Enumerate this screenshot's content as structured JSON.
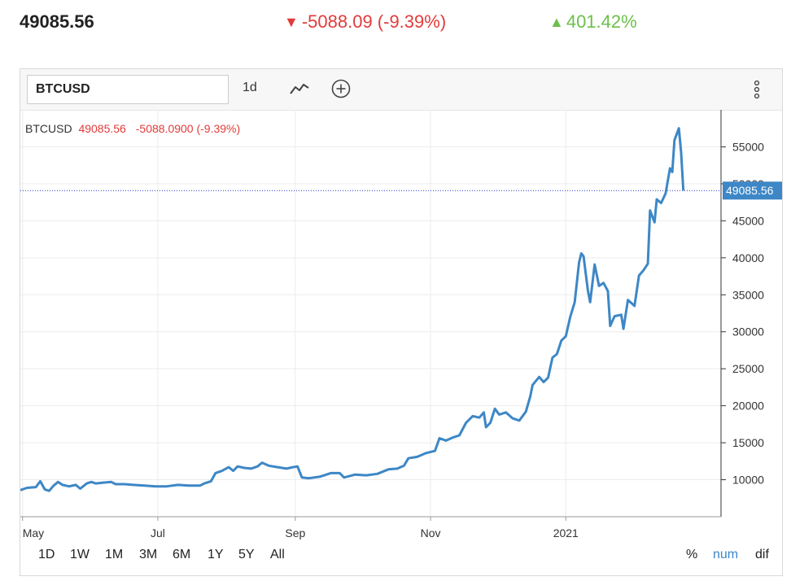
{
  "header": {
    "price": "49085.56",
    "change": "-5088.09 (-9.39%)",
    "change_icon": "triangle-down-icon",
    "change_color": "#e23b3b",
    "performance": "401.42%",
    "performance_icon": "triangle-up-icon",
    "performance_color": "#6cc04a"
  },
  "toolbar": {
    "symbol_value": "BTCUSD",
    "interval_label": "1d",
    "chart_type_icon": "line-chart-icon",
    "indicator_icon": "add-indicator-icon",
    "menu_icon": "more-vertical-icon"
  },
  "legend": {
    "symbol": "BTCUSD",
    "price": "49085.56",
    "change": "-5088.0900 (-9.39%)"
  },
  "price_label": "49085.56",
  "ranges": [
    "1D",
    "1W",
    "1M",
    "3M",
    "6M",
    "1Y",
    "5Y",
    "All"
  ],
  "modes": [
    "%",
    "num",
    "dif"
  ],
  "active_mode": "num",
  "colors": {
    "line": "#3d87c6",
    "price_tag": "#3d87c6",
    "down": "#e23b3b",
    "up": "#6cc04a",
    "grid": "#ececec",
    "ref_line": "#2233cc"
  },
  "chart_data": {
    "type": "line",
    "title": "",
    "xlabel": "",
    "ylabel": "",
    "ylim": [
      5000,
      60000
    ],
    "yticks": [
      10000,
      15000,
      20000,
      25000,
      30000,
      35000,
      40000,
      45000,
      50000,
      55000
    ],
    "xlim": [
      "2020-04-30",
      "2021-03-12"
    ],
    "xticks": [
      {
        "date": "2020-05-01",
        "label": "May"
      },
      {
        "date": "2020-07-01",
        "label": "Jul"
      },
      {
        "date": "2020-09-01",
        "label": "Sep"
      },
      {
        "date": "2020-11-01",
        "label": "Nov"
      },
      {
        "date": "2021-01-01",
        "label": "2021"
      }
    ],
    "grid": true,
    "last_value": 49085.56,
    "series": [
      {
        "name": "BTCUSD",
        "points": [
          [
            "2020-04-30",
            8600
          ],
          [
            "2020-05-03",
            8900
          ],
          [
            "2020-05-07",
            9000
          ],
          [
            "2020-05-09",
            9800
          ],
          [
            "2020-05-11",
            8700
          ],
          [
            "2020-05-13",
            8500
          ],
          [
            "2020-05-15",
            9200
          ],
          [
            "2020-05-17",
            9700
          ],
          [
            "2020-05-19",
            9300
          ],
          [
            "2020-05-22",
            9100
          ],
          [
            "2020-05-25",
            9300
          ],
          [
            "2020-05-27",
            8800
          ],
          [
            "2020-05-30",
            9500
          ],
          [
            "2020-06-01",
            9700
          ],
          [
            "2020-06-03",
            9500
          ],
          [
            "2020-06-06",
            9600
          ],
          [
            "2020-06-10",
            9700
          ],
          [
            "2020-06-12",
            9400
          ],
          [
            "2020-06-16",
            9400
          ],
          [
            "2020-06-20",
            9300
          ],
          [
            "2020-06-25",
            9200
          ],
          [
            "2020-06-30",
            9100
          ],
          [
            "2020-07-05",
            9100
          ],
          [
            "2020-07-10",
            9300
          ],
          [
            "2020-07-15",
            9200
          ],
          [
            "2020-07-20",
            9200
          ],
          [
            "2020-07-22",
            9500
          ],
          [
            "2020-07-25",
            9800
          ],
          [
            "2020-07-27",
            10900
          ],
          [
            "2020-07-30",
            11200
          ],
          [
            "2020-08-02",
            11700
          ],
          [
            "2020-08-04",
            11200
          ],
          [
            "2020-08-06",
            11800
          ],
          [
            "2020-08-09",
            11600
          ],
          [
            "2020-08-12",
            11500
          ],
          [
            "2020-08-15",
            11800
          ],
          [
            "2020-08-17",
            12300
          ],
          [
            "2020-08-20",
            11900
          ],
          [
            "2020-08-24",
            11700
          ],
          [
            "2020-08-28",
            11500
          ],
          [
            "2020-08-31",
            11700
          ],
          [
            "2020-09-02",
            11800
          ],
          [
            "2020-09-04",
            10300
          ],
          [
            "2020-09-07",
            10200
          ],
          [
            "2020-09-12",
            10400
          ],
          [
            "2020-09-17",
            10900
          ],
          [
            "2020-09-21",
            10900
          ],
          [
            "2020-09-23",
            10300
          ],
          [
            "2020-09-28",
            10700
          ],
          [
            "2020-10-03",
            10600
          ],
          [
            "2020-10-08",
            10800
          ],
          [
            "2020-10-13",
            11400
          ],
          [
            "2020-10-17",
            11500
          ],
          [
            "2020-10-20",
            11900
          ],
          [
            "2020-10-22",
            12900
          ],
          [
            "2020-10-26",
            13100
          ],
          [
            "2020-10-30",
            13600
          ],
          [
            "2020-11-03",
            13900
          ],
          [
            "2020-11-05",
            15600
          ],
          [
            "2020-11-08",
            15300
          ],
          [
            "2020-11-11",
            15700
          ],
          [
            "2020-11-14",
            16000
          ],
          [
            "2020-11-17",
            17700
          ],
          [
            "2020-11-20",
            18600
          ],
          [
            "2020-11-23",
            18400
          ],
          [
            "2020-11-25",
            19100
          ],
          [
            "2020-11-26",
            17100
          ],
          [
            "2020-11-28",
            17700
          ],
          [
            "2020-11-30",
            19600
          ],
          [
            "2020-12-02",
            18800
          ],
          [
            "2020-12-05",
            19100
          ],
          [
            "2020-12-08",
            18300
          ],
          [
            "2020-12-11",
            18000
          ],
          [
            "2020-12-14",
            19200
          ],
          [
            "2020-12-16",
            21300
          ],
          [
            "2020-12-17",
            22800
          ],
          [
            "2020-12-20",
            23900
          ],
          [
            "2020-12-22",
            23200
          ],
          [
            "2020-12-24",
            23800
          ],
          [
            "2020-12-26",
            26500
          ],
          [
            "2020-12-28",
            27000
          ],
          [
            "2020-12-30",
            28800
          ],
          [
            "2021-01-01",
            29400
          ],
          [
            "2021-01-03",
            32000
          ],
          [
            "2021-01-05",
            34000
          ],
          [
            "2021-01-07",
            39400
          ],
          [
            "2021-01-08",
            40600
          ],
          [
            "2021-01-09",
            40200
          ],
          [
            "2021-01-11",
            35500
          ],
          [
            "2021-01-12",
            34000
          ],
          [
            "2021-01-14",
            39100
          ],
          [
            "2021-01-16",
            36200
          ],
          [
            "2021-01-18",
            36600
          ],
          [
            "2021-01-20",
            35500
          ],
          [
            "2021-01-21",
            30800
          ],
          [
            "2021-01-23",
            32100
          ],
          [
            "2021-01-26",
            32300
          ],
          [
            "2021-01-27",
            30400
          ],
          [
            "2021-01-29",
            34300
          ],
          [
            "2021-02-01",
            33500
          ],
          [
            "2021-02-03",
            37600
          ],
          [
            "2021-02-05",
            38300
          ],
          [
            "2021-02-07",
            39200
          ],
          [
            "2021-02-08",
            46400
          ],
          [
            "2021-02-10",
            44800
          ],
          [
            "2021-02-11",
            47900
          ],
          [
            "2021-02-13",
            47400
          ],
          [
            "2021-02-15",
            48700
          ],
          [
            "2021-02-17",
            52100
          ],
          [
            "2021-02-18",
            51600
          ],
          [
            "2021-02-19",
            55900
          ],
          [
            "2021-02-21",
            57500
          ],
          [
            "2021-02-22",
            54200
          ],
          [
            "2021-02-23",
            49085.56
          ]
        ]
      }
    ]
  }
}
